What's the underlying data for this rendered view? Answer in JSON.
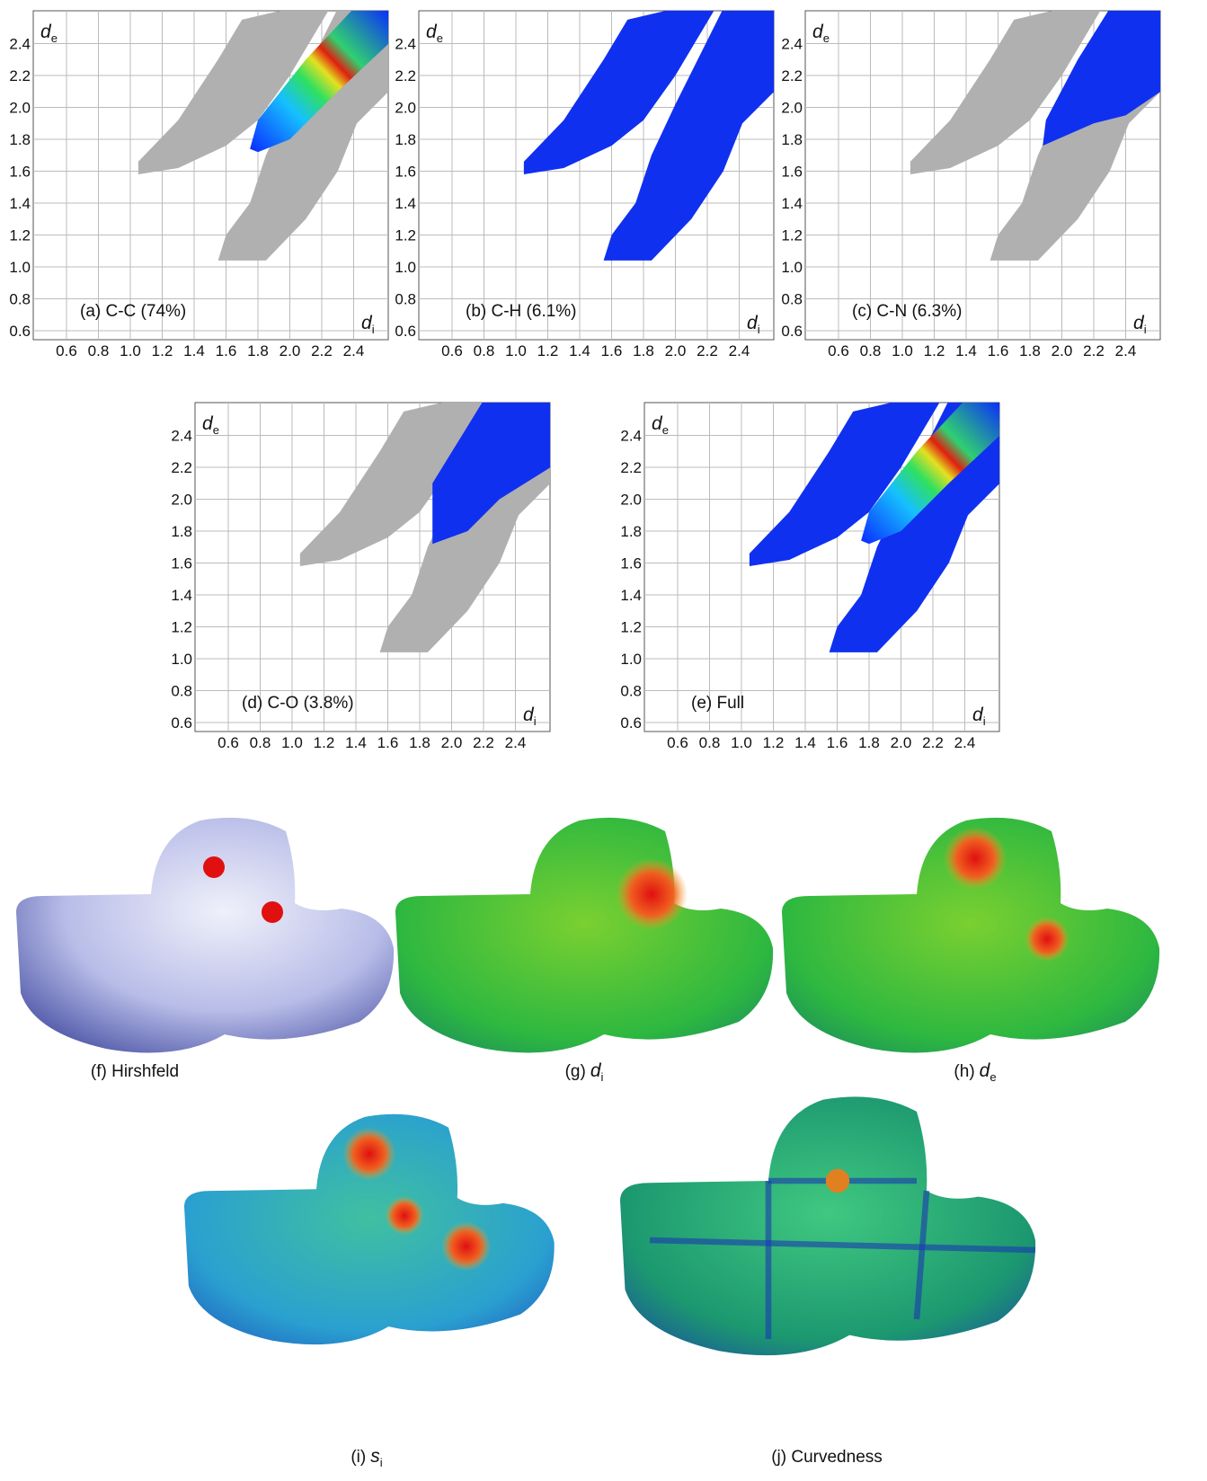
{
  "axis": {
    "ticks": [
      "0.6",
      "0.8",
      "1.0",
      "1.2",
      "1.4",
      "1.6",
      "1.8",
      "2.0",
      "2.2",
      "2.4"
    ],
    "x_label": {
      "symbol": "d",
      "sub": "i"
    },
    "y_label": {
      "symbol": "d",
      "sub": "e"
    }
  },
  "fingerprint_plots": [
    {
      "label": "(a) C-C (74%)"
    },
    {
      "label": "(b) C-H (6.1%)"
    },
    {
      "label": "(c) C-N (6.3%)"
    },
    {
      "label": "(d) C-O (3.8%)"
    },
    {
      "label": "(e) Full"
    }
  ],
  "surfaces": [
    {
      "prefix": "(f) Hirshfeld"
    },
    {
      "prefix": "(g)",
      "symbol": "d",
      "sub": "i"
    },
    {
      "prefix": "(h)",
      "symbol": "d",
      "sub": "e"
    },
    {
      "prefix": "(i)",
      "symbol": "s",
      "sub": "i"
    },
    {
      "prefix": "(j) Curvedness"
    }
  ]
}
